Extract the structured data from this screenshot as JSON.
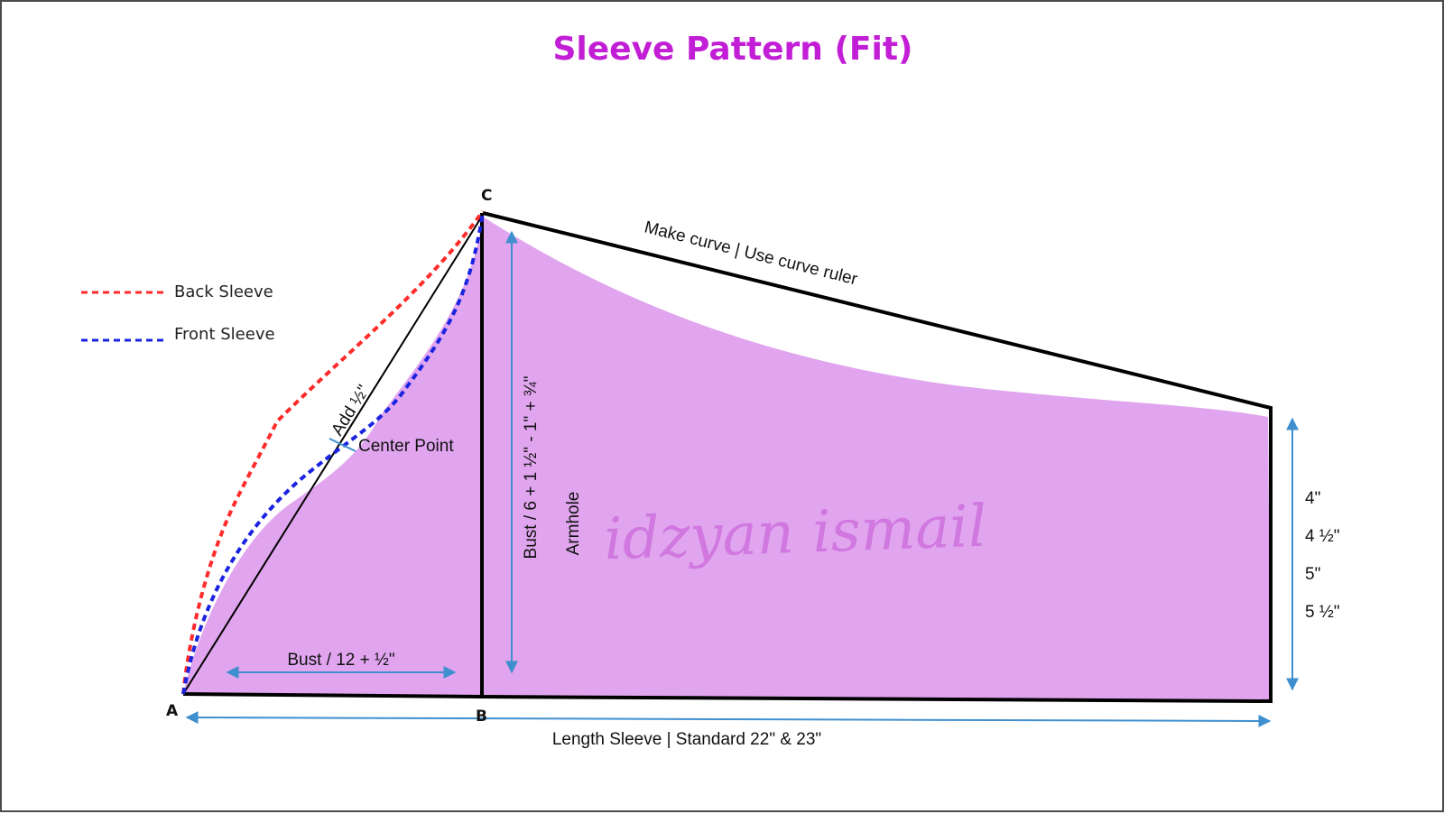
{
  "title": "Sleeve Pattern (Fit)",
  "colors": {
    "title": "#c21ed6",
    "fill": "#e0a5ee",
    "outline": "#000000",
    "back_sleeve": "#ff2b2b",
    "front_sleeve": "#1a23e0",
    "measure_arrow": "#3f8fcf",
    "watermark": "#cc6fdd"
  },
  "legend": {
    "back_sleeve": "Back Sleeve",
    "front_sleeve": "Front Sleeve"
  },
  "points": {
    "a": "A",
    "b": "B",
    "c": "C"
  },
  "labels": {
    "top_edge": "Make curve | Use curve ruler",
    "add_half": "Add ½\"",
    "center_point": "Center Point",
    "bust_twelve": "Bust / 12 + ½\"",
    "bust_six": "Bust / 6 + 1 ½\"  - 1\" + ¾\"",
    "armhole": "Armhole",
    "length": "Length Sleeve | Standard 22\" & 23\"",
    "watermark": "idzyan ismail"
  },
  "cuff_sizes": [
    "4\"",
    "4 ½\"",
    "5\"",
    "5 ½\""
  ]
}
